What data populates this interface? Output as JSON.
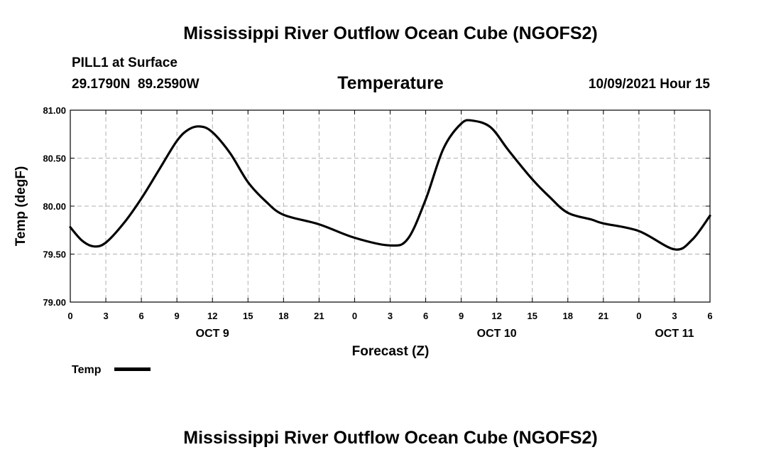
{
  "header": {
    "title": "Mississippi River Outflow Ocean Cube (NGOFS2)",
    "station": "PILL1 at Surface",
    "coords": "29.1790N  89.2590W",
    "variable": "Temperature",
    "datetime": "10/09/2021 Hour 15"
  },
  "footer": {
    "title": "Mississippi River Outflow Ocean Cube (NGOFS2)"
  },
  "legend": {
    "label": "Temp"
  },
  "colors": {
    "line": "#000000",
    "grid": "#b0b0b0"
  },
  "chart_data": {
    "type": "line",
    "title": "Temperature",
    "xlabel": "Forecast (Z)",
    "ylabel": "Temp (degF)",
    "ylim": [
      79.0,
      81.0
    ],
    "xlim": [
      0,
      54
    ],
    "grid": true,
    "legend_position": "bottom-left",
    "yticks": [
      "79.00",
      "79.50",
      "80.00",
      "80.50",
      "81.00"
    ],
    "yticks_values": [
      79.0,
      79.5,
      80.0,
      80.5,
      81.0
    ],
    "xticks": [
      "0",
      "3",
      "6",
      "9",
      "12",
      "15",
      "18",
      "21",
      "0",
      "3",
      "6",
      "9",
      "12",
      "15",
      "18",
      "21",
      "0",
      "3",
      "6"
    ],
    "day_labels": [
      {
        "label": "OCT 9",
        "x": 12
      },
      {
        "label": "OCT 10",
        "x": 36
      },
      {
        "label": "OCT 11",
        "x": 51
      }
    ],
    "series": [
      {
        "name": "Temp",
        "x": [
          0,
          1,
          2,
          3,
          4.5,
          6,
          7.5,
          9,
          10,
          11,
          12,
          13.5,
          15,
          16.5,
          18,
          21,
          24,
          27,
          28.5,
          30,
          31.5,
          33,
          34,
          35.5,
          37,
          39,
          40.5,
          42,
          44,
          45,
          48,
          51,
          52.5,
          54
        ],
        "values": [
          79.78,
          79.64,
          79.58,
          79.62,
          79.82,
          80.08,
          80.38,
          80.68,
          80.8,
          80.83,
          80.77,
          80.55,
          80.25,
          80.05,
          79.91,
          79.81,
          79.67,
          79.59,
          79.66,
          80.07,
          80.6,
          80.86,
          80.89,
          80.82,
          80.58,
          80.28,
          80.09,
          79.93,
          79.86,
          79.82,
          79.74,
          79.55,
          79.65,
          79.9
        ]
      }
    ]
  }
}
